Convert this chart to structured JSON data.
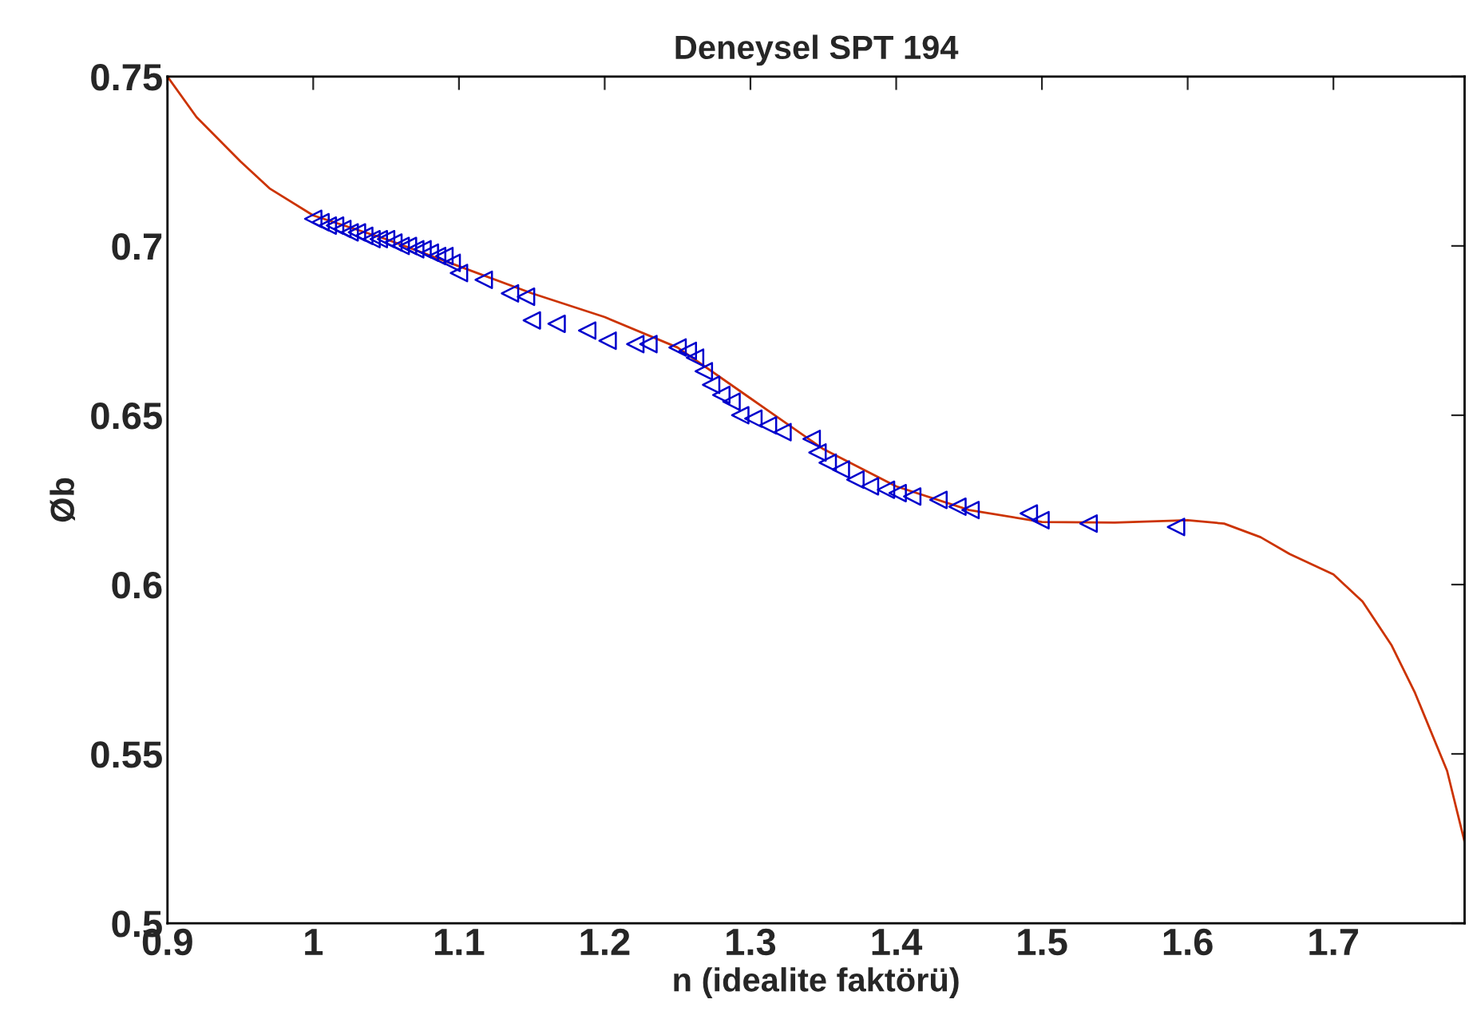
{
  "chart_data": {
    "type": "scatter",
    "title": "Deneysel SPT 194",
    "xlabel": "n (idealite faktörü)",
    "ylabel": "Øb",
    "xlim": [
      0.9,
      1.79
    ],
    "xticks": [
      0.9,
      1,
      1.1,
      1.2,
      1.3,
      1.4,
      1.5,
      1.6,
      1.7
    ],
    "ylim": [
      0.5,
      0.75
    ],
    "yticks": [
      0.5,
      0.55,
      0.6,
      0.65,
      0.7,
      0.75
    ],
    "grid": false,
    "legend": false,
    "series": [
      {
        "color": "#0000cc",
        "marker": "triangle",
        "x": [
          1.0,
          1.005,
          1.01,
          1.015,
          1.02,
          1.025,
          1.03,
          1.035,
          1.04,
          1.045,
          1.05,
          1.055,
          1.06,
          1.065,
          1.07,
          1.075,
          1.08,
          1.085,
          1.09,
          1.095,
          1.1,
          1.117,
          1.135,
          1.146,
          1.15,
          1.167,
          1.188,
          1.202,
          1.221,
          1.23,
          1.25,
          1.257,
          1.262,
          1.268,
          1.273,
          1.28,
          1.287,
          1.293,
          1.302,
          1.312,
          1.322,
          1.342,
          1.346,
          1.353,
          1.362,
          1.372,
          1.382,
          1.393,
          1.401,
          1.411,
          1.429,
          1.442,
          1.451,
          1.491,
          1.499,
          1.532,
          1.592
        ],
        "values": [
          0.708,
          0.707,
          0.706,
          0.706,
          0.705,
          0.704,
          0.704,
          0.703,
          0.702,
          0.702,
          0.702,
          0.701,
          0.7,
          0.7,
          0.699,
          0.699,
          0.698,
          0.697,
          0.697,
          0.695,
          0.692,
          0.69,
          0.686,
          0.685,
          0.678,
          0.677,
          0.675,
          0.672,
          0.671,
          0.671,
          0.67,
          0.669,
          0.667,
          0.663,
          0.659,
          0.656,
          0.654,
          0.65,
          0.649,
          0.647,
          0.645,
          0.643,
          0.639,
          0.636,
          0.634,
          0.631,
          0.629,
          0.628,
          0.627,
          0.626,
          0.625,
          0.623,
          0.622,
          0.621,
          0.619,
          0.618,
          0.617
        ]
      },
      {
        "type": "line",
        "color": "#cc3300",
        "marker": "none",
        "line_style": "solid",
        "x": [
          0.9,
          0.92,
          0.95,
          0.97,
          1.0,
          1.05,
          1.1,
          1.15,
          1.2,
          1.25,
          1.3,
          1.35,
          1.4,
          1.45,
          1.5,
          1.55,
          1.6,
          1.625,
          1.65,
          1.67,
          1.7,
          1.72,
          1.74,
          1.756,
          1.778,
          1.79
        ],
        "values": [
          0.75,
          0.738,
          0.725,
          0.717,
          0.709,
          0.702,
          0.694,
          0.686,
          0.679,
          0.67,
          0.655,
          0.64,
          0.629,
          0.622,
          0.6185,
          0.6183,
          0.619,
          0.618,
          0.614,
          0.609,
          0.603,
          0.595,
          0.582,
          0.568,
          0.545,
          0.524
        ]
      }
    ]
  }
}
